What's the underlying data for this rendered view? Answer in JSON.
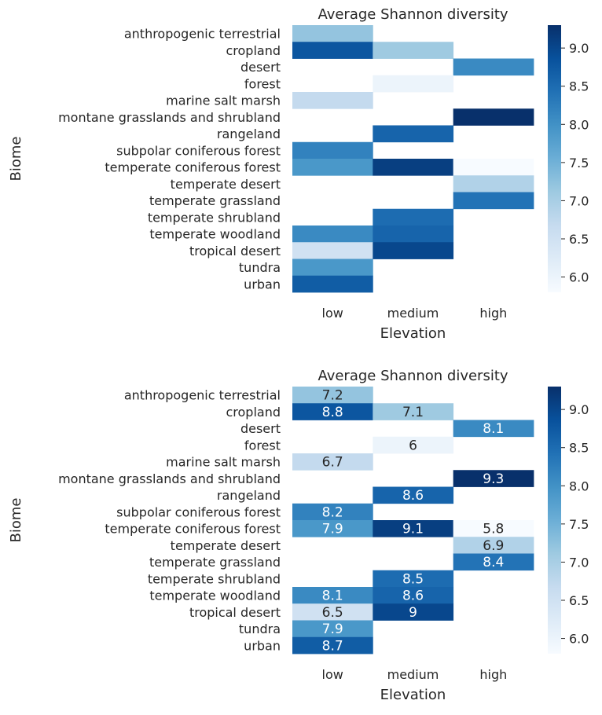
{
  "chart_data": [
    {
      "type": "heatmap",
      "title": "Average Shannon diversity",
      "xlabel": "Elevation",
      "ylabel": "Biome",
      "x_categories": [
        "low",
        "medium",
        "high"
      ],
      "y_categories": [
        "anthropogenic terrestrial",
        "cropland",
        "desert",
        "forest",
        "marine salt marsh",
        "montane grasslands and shrubland",
        "rangeland",
        "subpolar coniferous forest",
        "temperate coniferous forest",
        "temperate desert",
        "temperate grassland",
        "temperate shrubland",
        "temperate woodland",
        "tropical desert",
        "tundra",
        "urban"
      ],
      "values": [
        [
          7.2,
          null,
          null
        ],
        [
          8.8,
          7.1,
          null
        ],
        [
          null,
          null,
          8.1
        ],
        [
          null,
          6.0,
          null
        ],
        [
          6.7,
          null,
          null
        ],
        [
          null,
          null,
          9.3
        ],
        [
          null,
          8.6,
          null
        ],
        [
          8.2,
          null,
          null
        ],
        [
          7.9,
          9.1,
          5.8
        ],
        [
          null,
          null,
          6.9
        ],
        [
          null,
          null,
          8.4
        ],
        [
          null,
          8.5,
          null
        ],
        [
          8.1,
          8.6,
          null
        ],
        [
          6.5,
          9.0,
          null
        ],
        [
          7.9,
          null,
          null
        ],
        [
          8.7,
          null,
          null
        ]
      ],
      "annotated": false,
      "colormap": "Blues",
      "colorbar": {
        "range": [
          5.8,
          9.3
        ],
        "ticks": [
          "6.0",
          "6.5",
          "7.0",
          "7.5",
          "8.0",
          "8.5",
          "9.0"
        ]
      }
    },
    {
      "type": "heatmap",
      "title": "Average Shannon diversity",
      "xlabel": "Elevation",
      "ylabel": "Biome",
      "x_categories": [
        "low",
        "medium",
        "high"
      ],
      "y_categories": [
        "anthropogenic terrestrial",
        "cropland",
        "desert",
        "forest",
        "marine salt marsh",
        "montane grasslands and shrubland",
        "rangeland",
        "subpolar coniferous forest",
        "temperate coniferous forest",
        "temperate desert",
        "temperate grassland",
        "temperate shrubland",
        "temperate woodland",
        "tropical desert",
        "tundra",
        "urban"
      ],
      "values": [
        [
          7.2,
          null,
          null
        ],
        [
          8.8,
          7.1,
          null
        ],
        [
          null,
          null,
          8.1
        ],
        [
          null,
          6.0,
          null
        ],
        [
          6.7,
          null,
          null
        ],
        [
          null,
          null,
          9.3
        ],
        [
          null,
          8.6,
          null
        ],
        [
          8.2,
          null,
          null
        ],
        [
          7.9,
          9.1,
          5.8
        ],
        [
          null,
          null,
          6.9
        ],
        [
          null,
          null,
          8.4
        ],
        [
          null,
          8.5,
          null
        ],
        [
          8.1,
          8.6,
          null
        ],
        [
          6.5,
          9.0,
          null
        ],
        [
          7.9,
          null,
          null
        ],
        [
          8.7,
          null,
          null
        ]
      ],
      "annotated": true,
      "colormap": "Blues",
      "colorbar": {
        "range": [
          5.8,
          9.3
        ],
        "ticks": [
          "6.0",
          "6.5",
          "7.0",
          "7.5",
          "8.0",
          "8.5",
          "9.0"
        ]
      }
    }
  ]
}
